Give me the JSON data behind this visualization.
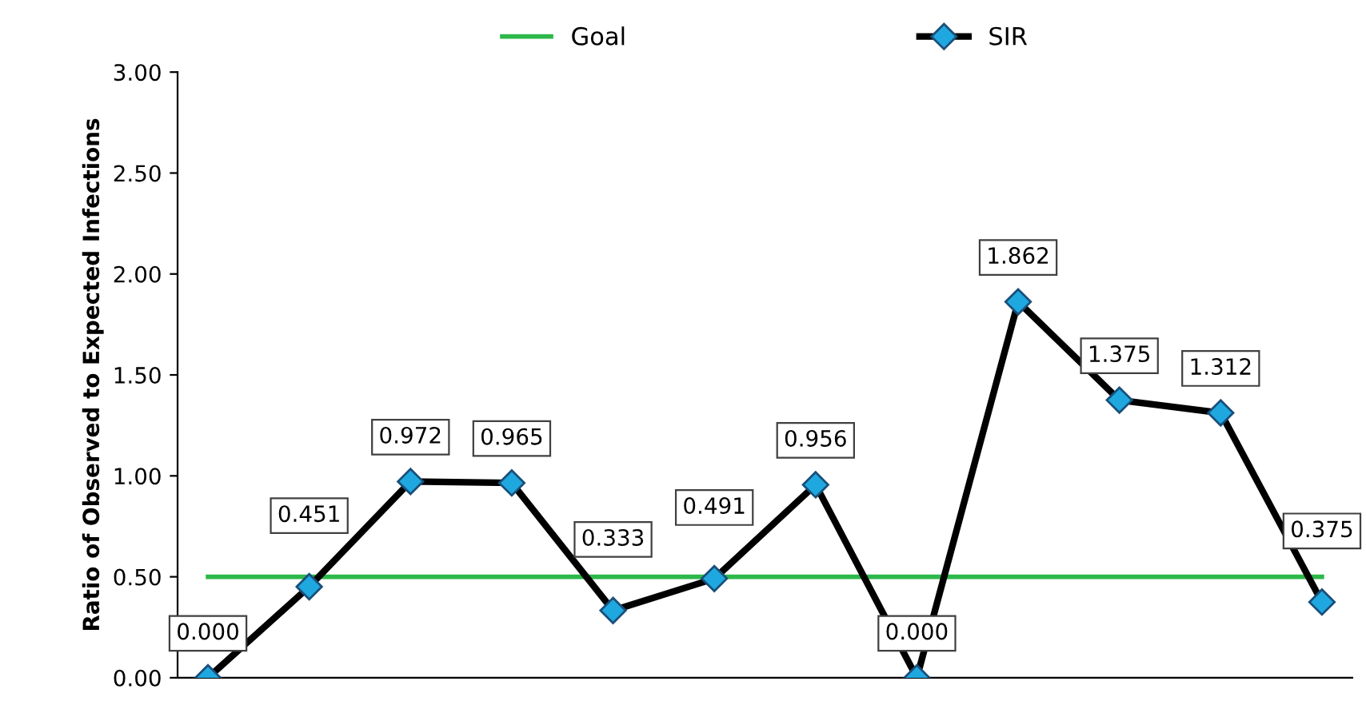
{
  "chart_data": {
    "type": "line",
    "ylabel": "Ratio of Observed to Expected Infections",
    "categories": [
      null,
      null,
      null,
      null,
      null,
      null,
      null,
      null,
      null,
      null,
      null,
      null
    ],
    "series": [
      {
        "name": "Goal",
        "color": "#2db84a",
        "values": [
          0.5,
          0.5,
          0.5,
          0.5,
          0.5,
          0.5,
          0.5,
          0.5,
          0.5,
          0.5,
          0.5,
          0.5
        ],
        "marker": "none"
      },
      {
        "name": "SIR",
        "color": "#000000",
        "values": [
          0.0,
          0.451,
          0.972,
          0.965,
          0.333,
          0.491,
          0.956,
          0.0,
          1.862,
          1.375,
          1.312,
          0.375
        ],
        "marker": "diamond",
        "value_labels": [
          "0.000",
          "0.451",
          "0.972",
          "0.965",
          "0.333",
          "0.491",
          "0.956",
          "0.000",
          "1.862",
          "1.375",
          "1.312",
          "0.375"
        ]
      }
    ],
    "ylim": [
      0,
      3
    ],
    "yticks": [
      {
        "value": 0,
        "label": "0.00"
      },
      {
        "value": 0.5,
        "label": "0.50"
      },
      {
        "value": 1,
        "label": "1.00"
      },
      {
        "value": 1.5,
        "label": "1.50"
      },
      {
        "value": 2,
        "label": "2.00"
      },
      {
        "value": 2.5,
        "label": "2.50"
      },
      {
        "value": 3,
        "label": "3.00"
      }
    ],
    "tick_labels": "y",
    "legend": "top",
    "grid": false,
    "line_style": "solid"
  }
}
